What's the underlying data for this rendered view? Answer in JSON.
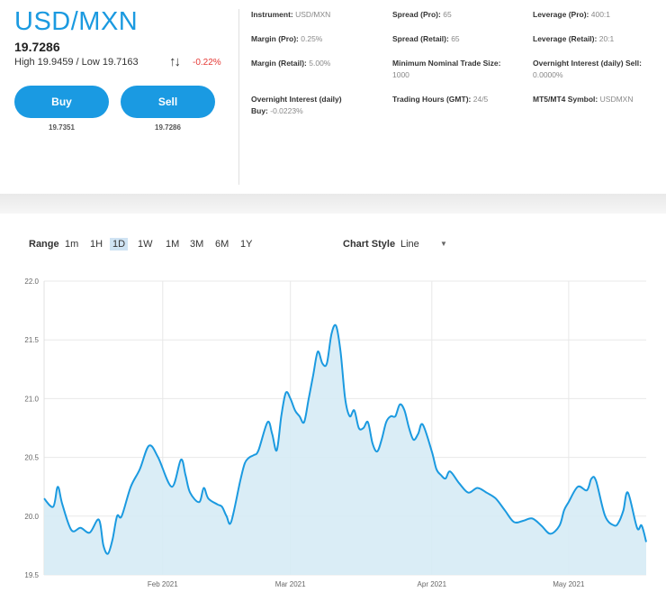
{
  "instrument": {
    "symbol": "USD/MXN",
    "price": "19.7286",
    "high_low": "High 19.9459 / Low 19.7163",
    "change": "-0.22%",
    "buy_label": "Buy",
    "sell_label": "Sell",
    "buy_price": "19.7351",
    "sell_price": "19.7286"
  },
  "details": [
    {
      "label": "Instrument:",
      "value": "USD/MXN"
    },
    {
      "label": "Spread (Pro):",
      "value": "65"
    },
    {
      "label": "Leverage (Pro):",
      "value": "400:1"
    },
    {
      "label": "Margin (Pro):",
      "value": "0.25%"
    },
    {
      "label": "Spread (Retail):",
      "value": "65"
    },
    {
      "label": "Leverage (Retail):",
      "value": "20:1"
    },
    {
      "label": "Margin (Retail):",
      "value": "5.00%"
    },
    {
      "label": "Minimum Nominal Trade Size:",
      "value": "1000"
    },
    {
      "label": "Overnight Interest (daily) Sell:",
      "value": "0.0000%"
    },
    {
      "label": "Overnight Interest (daily) Buy:",
      "value": "-0.0223%"
    },
    {
      "label": "Trading Hours (GMT):",
      "value": "24/5"
    },
    {
      "label": "MT5/MT4 Symbol:",
      "value": "USDMXN"
    }
  ],
  "controls": {
    "range_label": "Range",
    "ranges": [
      "1m",
      "1H",
      "1D",
      "1W",
      "1M",
      "3M",
      "6M",
      "1Y"
    ],
    "active_range": "1D",
    "chart_style_label": "Chart Style",
    "chart_style_value": "Line"
  },
  "colors": {
    "accent": "#1a9ae2",
    "negative": "#e53935",
    "line": "#1b9ae0",
    "fill": "#d6ebf5"
  },
  "chart_data": {
    "type": "area",
    "title": "",
    "xlabel": "",
    "ylabel": "",
    "ylim": [
      19.5,
      22.0
    ],
    "yticks": [
      "19.5",
      "20.0",
      "20.5",
      "21.0",
      "21.5",
      "22.0"
    ],
    "xtick_labels": [
      {
        "date": "2021-02-01",
        "label": "Feb 2021"
      },
      {
        "date": "2021-03-01",
        "label": "Mar 2021"
      },
      {
        "date": "2021-04-01",
        "label": "Apr 2021"
      },
      {
        "date": "2021-05-01",
        "label": "May 2021"
      }
    ],
    "grid": true,
    "x": [
      "2021-01-06",
      "2021-01-08",
      "2021-01-09",
      "2021-01-10",
      "2021-01-12",
      "2021-01-14",
      "2021-01-16",
      "2021-01-18",
      "2021-01-19",
      "2021-01-20",
      "2021-01-21",
      "2021-01-22",
      "2021-01-23",
      "2021-01-25",
      "2021-01-27",
      "2021-01-29",
      "2021-01-31",
      "2021-02-03",
      "2021-02-05",
      "2021-02-06",
      "2021-02-07",
      "2021-02-09",
      "2021-02-10",
      "2021-02-11",
      "2021-02-13",
      "2021-02-14",
      "2021-02-15",
      "2021-02-16",
      "2021-02-18",
      "2021-02-19",
      "2021-02-20",
      "2021-02-21",
      "2021-02-22",
      "2021-02-24",
      "2021-02-25",
      "2021-02-26",
      "2021-02-27",
      "2021-02-28",
      "2021-03-01",
      "2021-03-02",
      "2021-03-03",
      "2021-03-04",
      "2021-03-05",
      "2021-03-06",
      "2021-03-07",
      "2021-03-08",
      "2021-03-09",
      "2021-03-10",
      "2021-03-11",
      "2021-03-12",
      "2021-03-13",
      "2021-03-14",
      "2021-03-15",
      "2021-03-16",
      "2021-03-17",
      "2021-03-18",
      "2021-03-19",
      "2021-03-20",
      "2021-03-21",
      "2021-03-22",
      "2021-03-23",
      "2021-03-24",
      "2021-03-25",
      "2021-03-26",
      "2021-03-27",
      "2021-03-28",
      "2021-03-29",
      "2021-03-30",
      "2021-04-01",
      "2021-04-02",
      "2021-04-03",
      "2021-04-04",
      "2021-04-05",
      "2021-04-07",
      "2021-04-09",
      "2021-04-11",
      "2021-04-13",
      "2021-04-15",
      "2021-04-17",
      "2021-04-19",
      "2021-04-21",
      "2021-04-23",
      "2021-04-25",
      "2021-04-27",
      "2021-04-29",
      "2021-04-30",
      "2021-05-01",
      "2021-05-03",
      "2021-05-05",
      "2021-05-06",
      "2021-05-07",
      "2021-05-09",
      "2021-05-11",
      "2021-05-12",
      "2021-05-13",
      "2021-05-14",
      "2021-05-16",
      "2021-05-17",
      "2021-05-18"
    ],
    "series": [
      {
        "values": [
          20.15,
          20.08,
          20.25,
          20.1,
          19.88,
          19.9,
          19.86,
          19.97,
          19.75,
          19.68,
          19.8,
          20.0,
          20.0,
          20.25,
          20.4,
          20.6,
          20.5,
          20.25,
          20.48,
          20.35,
          20.2,
          20.12,
          20.24,
          20.15,
          20.1,
          20.08,
          20.0,
          19.95,
          20.3,
          20.45,
          20.5,
          20.52,
          20.56,
          20.8,
          20.7,
          20.56,
          20.85,
          21.05,
          21.0,
          20.9,
          20.85,
          20.8,
          21.0,
          21.2,
          21.4,
          21.3,
          21.3,
          21.55,
          21.62,
          21.4,
          21.0,
          20.85,
          20.9,
          20.75,
          20.75,
          20.8,
          20.62,
          20.55,
          20.65,
          20.8,
          20.85,
          20.85,
          20.95,
          20.9,
          20.75,
          20.65,
          20.7,
          20.78,
          20.55,
          20.4,
          20.35,
          20.32,
          20.38,
          20.28,
          20.2,
          20.24,
          20.2,
          20.15,
          20.05,
          19.95,
          19.96,
          19.98,
          19.92,
          19.85,
          19.92,
          20.05,
          20.12,
          20.25,
          20.22,
          20.32,
          20.3,
          20.0,
          19.92,
          19.95,
          20.05,
          20.2,
          19.9,
          19.92,
          19.78
        ]
      }
    ]
  }
}
